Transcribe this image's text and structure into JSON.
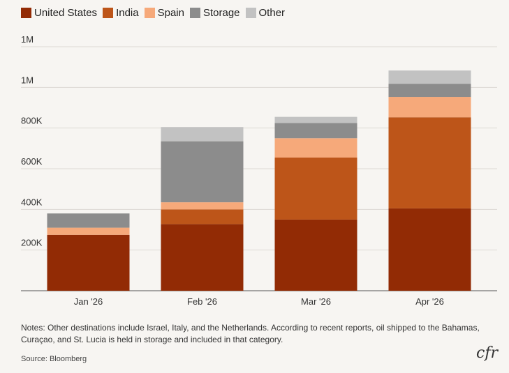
{
  "chart_data": {
    "type": "bar",
    "stacked": true,
    "categories": [
      "Jan '26",
      "Feb '26",
      "Mar '26",
      "Apr '26"
    ],
    "series": [
      {
        "name": "United States",
        "color": "#922b05",
        "values": [
          275000,
          328000,
          350000,
          405000
        ]
      },
      {
        "name": "India",
        "color": "#bd5519",
        "values": [
          0,
          72000,
          305000,
          448000
        ]
      },
      {
        "name": "Spain",
        "color": "#f6a97a",
        "values": [
          35000,
          35000,
          95000,
          100000
        ]
      },
      {
        "name": "Storage",
        "color": "#8c8c8c",
        "values": [
          70000,
          300000,
          75000,
          65000
        ]
      },
      {
        "name": "Other",
        "color": "#c2c2c2",
        "values": [
          0,
          70000,
          30000,
          65000
        ]
      }
    ],
    "y_ticks": [
      "200K",
      "400K",
      "600K",
      "800K",
      "1M",
      "1M"
    ],
    "y_tick_values": [
      200000,
      400000,
      600000,
      800000,
      1000000,
      1200000
    ],
    "ylim": [
      0,
      1200000
    ],
    "legend": "top-left",
    "grid": true
  },
  "notes": "Notes: Other destinations include Israel, Italy, and the Netherlands. According to recent reports, oil shipped to the Bahamas, Curaçao, and St. Lucia is held in storage and included in that category.",
  "source": "Source: Bloomberg",
  "logo": "cfr"
}
